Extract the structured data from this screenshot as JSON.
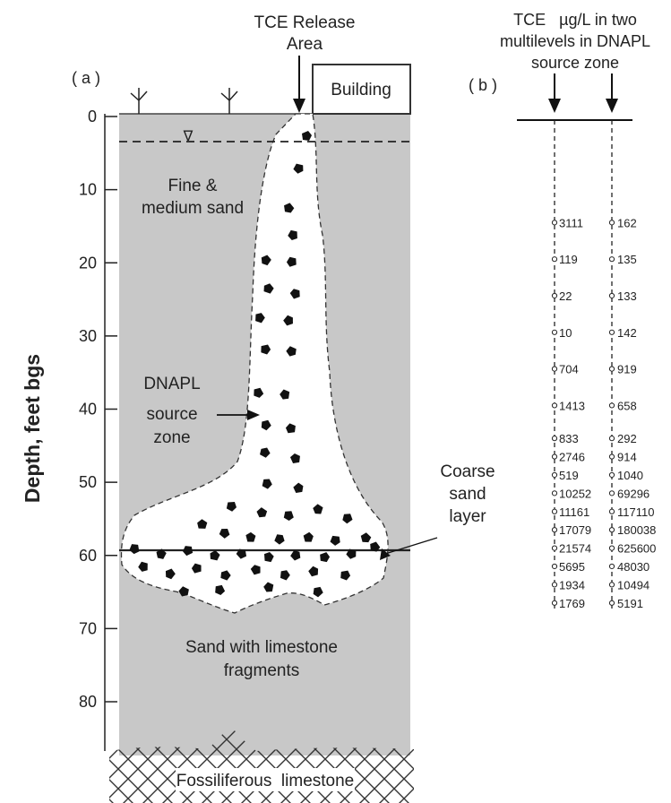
{
  "panel_a": {
    "label": "( a )",
    "release_title_1": "TCE Release",
    "release_title_2": "Area",
    "building": "Building",
    "fine_sand_1": "Fine &",
    "fine_sand_2": "medium sand",
    "dnapl_1": "DNAPL",
    "dnapl_2": "source",
    "dnapl_3": "zone",
    "coarse_1": "Coarse",
    "coarse_2": "sand",
    "coarse_3": "layer",
    "sand_lime_1": "Sand with limestone",
    "sand_lime_2": "fragments",
    "limestone": "Fossiliferous  limestone",
    "axis_label": "Depth, feet bgs",
    "depth_ticks": [
      "0",
      "10",
      "20",
      "30",
      "40",
      "50",
      "60",
      "70",
      "80"
    ],
    "water_table_symbol": "∇",
    "coarse_layer_depth_ft": 59
  },
  "panel_b": {
    "label": "( b )",
    "title_1": "TCE   µg/L in two",
    "title_2": "multilevels in DNAPL",
    "title_3": "source zone",
    "samples": [
      {
        "depth_ft": 14.5,
        "left": "3111",
        "right": "162"
      },
      {
        "depth_ft": 19.5,
        "left": "119",
        "right": "135"
      },
      {
        "depth_ft": 24.5,
        "left": "22",
        "right": "133"
      },
      {
        "depth_ft": 29.5,
        "left": "10",
        "right": "142"
      },
      {
        "depth_ft": 34.5,
        "left": "704",
        "right": "919"
      },
      {
        "depth_ft": 39.5,
        "left": "1413",
        "right": "658"
      },
      {
        "depth_ft": 44,
        "left": "833",
        "right": "292"
      },
      {
        "depth_ft": 46.5,
        "left": "2746",
        "right": "914"
      },
      {
        "depth_ft": 49,
        "left": "519",
        "right": "1040"
      },
      {
        "depth_ft": 51.5,
        "left": "10252",
        "right": "69296"
      },
      {
        "depth_ft": 54,
        "left": "11161",
        "right": "117110"
      },
      {
        "depth_ft": 56.5,
        "left": "17079",
        "right": "180038"
      },
      {
        "depth_ft": 59,
        "left": "21574",
        "right": "625600"
      },
      {
        "depth_ft": 61.5,
        "left": "5695",
        "right": "48030"
      },
      {
        "depth_ft": 64,
        "left": "1934",
        "right": "10494"
      },
      {
        "depth_ft": 66.5,
        "left": "1769",
        "right": "5191"
      }
    ]
  },
  "colors": {
    "ground": "#c8c8c8",
    "ink": "#111111"
  }
}
